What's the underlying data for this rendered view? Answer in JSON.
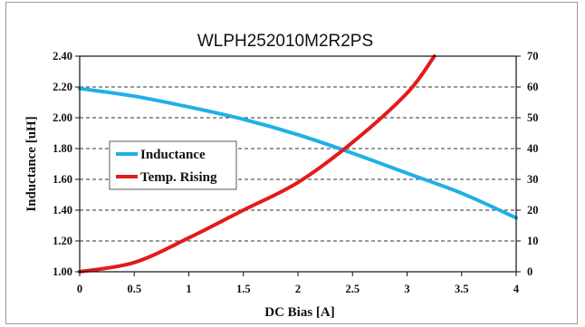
{
  "chart_data": {
    "type": "line",
    "title": "WLPH252010M2R2PS",
    "xlabel": "DC Bias [A]",
    "ylabel": "Inductance [uH]",
    "y2label": "",
    "xlim": [
      0,
      4
    ],
    "ylim": [
      1.0,
      2.4
    ],
    "y2lim": [
      0,
      70
    ],
    "x_ticks": [
      "0",
      "0.5",
      "1",
      "1.5",
      "2",
      "2.5",
      "3",
      "3.5",
      "4"
    ],
    "y_ticks": [
      "1.00",
      "1.20",
      "1.40",
      "1.60",
      "1.80",
      "2.00",
      "2.20",
      "2.40"
    ],
    "y2_ticks": [
      "0",
      "10",
      "20",
      "30",
      "40",
      "50",
      "60",
      "70"
    ],
    "grid": "horizontal dashed",
    "legend_position": "center-left",
    "series": [
      {
        "name": "Inductance",
        "color": "#1fb0e6",
        "axis": "left",
        "x": [
          0,
          0.5,
          1,
          1.5,
          2,
          2.5,
          3,
          3.5,
          4
        ],
        "values": [
          2.19,
          2.14,
          2.07,
          1.99,
          1.89,
          1.77,
          1.64,
          1.51,
          1.35
        ]
      },
      {
        "name": "Temp. Rising",
        "color": "#e21b1b",
        "axis": "right",
        "x": [
          0,
          0.5,
          1,
          1.5,
          2,
          2.5,
          3,
          3.25
        ],
        "values": [
          0,
          3,
          11,
          20,
          29,
          42,
          58,
          70
        ]
      }
    ]
  }
}
